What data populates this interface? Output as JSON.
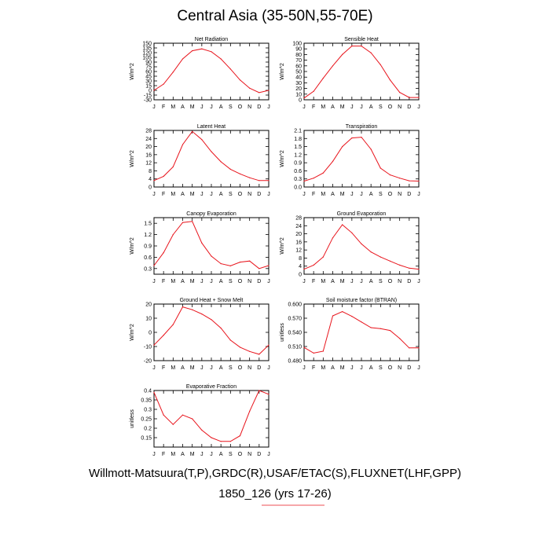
{
  "title": "Central Asia (35-50N,55-70E)",
  "footer": {
    "line1": "Willmott-Matsuura(T,P),GRDC(R),USAF/ETAC(S),FLUXNET(LHF,GPP)",
    "line2": "1850_126 (yrs 17-26)"
  },
  "colors": {
    "series": "#e8141c",
    "axis": "#000000",
    "underline": "#e8141c"
  },
  "chart_data": [
    {
      "type": "line",
      "title": "Net Radiation",
      "ylabel": "W/m^2",
      "categories": [
        "J",
        "F",
        "M",
        "A",
        "M",
        "J",
        "J",
        "A",
        "S",
        "O",
        "N",
        "D",
        "J"
      ],
      "ylim": [
        -30,
        150
      ],
      "yticks": [
        -30,
        -15,
        0,
        15,
        30,
        45,
        60,
        75,
        90,
        105,
        120,
        135,
        150
      ],
      "values": [
        0,
        20,
        58,
        100,
        126,
        132,
        123,
        100,
        68,
        33,
        7,
        -7,
        0
      ]
    },
    {
      "type": "line",
      "title": "Sensible Heat",
      "ylabel": "W/m^2",
      "categories": [
        "J",
        "F",
        "M",
        "A",
        "M",
        "J",
        "J",
        "A",
        "S",
        "O",
        "N",
        "D",
        "J"
      ],
      "ylim": [
        0,
        100
      ],
      "yticks": [
        0,
        10,
        20,
        30,
        40,
        50,
        60,
        70,
        80,
        90,
        100
      ],
      "values": [
        3,
        15,
        38,
        60,
        80,
        95,
        95,
        83,
        62,
        35,
        13,
        4,
        4
      ]
    },
    {
      "type": "line",
      "title": "Latent Heat",
      "ylabel": "W/m^2",
      "categories": [
        "J",
        "F",
        "M",
        "A",
        "M",
        "J",
        "J",
        "A",
        "S",
        "O",
        "N",
        "D",
        "J"
      ],
      "ylim": [
        0,
        28
      ],
      "yticks": [
        0,
        4,
        8,
        12,
        16,
        20,
        24,
        28
      ],
      "values": [
        3.2,
        5.3,
        10,
        21,
        27.5,
        23.5,
        17.5,
        12.5,
        8.8,
        6.5,
        4.6,
        3.2,
        3.2
      ]
    },
    {
      "type": "line",
      "title": "Transpiration",
      "ylabel": "W/m^2",
      "categories": [
        "J",
        "F",
        "M",
        "A",
        "M",
        "J",
        "J",
        "A",
        "S",
        "O",
        "N",
        "D",
        "J"
      ],
      "ylim": [
        0,
        2.1
      ],
      "yticks": [
        0,
        0.3,
        0.6,
        0.9,
        1.2,
        1.5,
        1.8,
        2.1
      ],
      "yticklabels": [
        "0.0",
        "0.3",
        "0.6",
        "0.9",
        "1.2",
        "1.5",
        "1.8",
        "2.1"
      ],
      "values": [
        0.22,
        0.33,
        0.52,
        0.95,
        1.5,
        1.82,
        1.85,
        1.4,
        0.7,
        0.45,
        0.33,
        0.23,
        0.22
      ]
    },
    {
      "type": "line",
      "title": "Canopy Evaporation",
      "ylabel": "W/m^2",
      "categories": [
        "J",
        "F",
        "M",
        "A",
        "M",
        "J",
        "J",
        "A",
        "S",
        "O",
        "N",
        "D",
        "J"
      ],
      "ylim": [
        0.15,
        1.65
      ],
      "yticks": [
        0.3,
        0.6,
        0.9,
        1.2,
        1.5
      ],
      "values": [
        0.38,
        0.72,
        1.2,
        1.52,
        1.55,
        0.98,
        0.63,
        0.43,
        0.37,
        0.47,
        0.5,
        0.3,
        0.38
      ]
    },
    {
      "type": "line",
      "title": "Ground Evaporation",
      "ylabel": "W/m^2",
      "categories": [
        "J",
        "F",
        "M",
        "A",
        "M",
        "J",
        "J",
        "A",
        "S",
        "O",
        "N",
        "D",
        "J"
      ],
      "ylim": [
        0,
        28
      ],
      "yticks": [
        0,
        4,
        8,
        12,
        16,
        20,
        24,
        28
      ],
      "values": [
        2.5,
        4.5,
        8.5,
        18,
        24.5,
        20.5,
        15,
        11,
        8.5,
        6.5,
        4.5,
        3,
        2.5
      ]
    },
    {
      "type": "line",
      "title": "Ground Heat + Snow Melt",
      "ylabel": "W/m^2",
      "categories": [
        "J",
        "F",
        "M",
        "A",
        "M",
        "J",
        "J",
        "A",
        "S",
        "O",
        "N",
        "D",
        "J"
      ],
      "ylim": [
        -20,
        20
      ],
      "yticks": [
        -20,
        -10,
        0,
        10,
        20
      ],
      "values": [
        -9,
        -2,
        5.5,
        18,
        16,
        13,
        9,
        3,
        -5.5,
        -10.5,
        -13.5,
        -15.5,
        -9
      ]
    },
    {
      "type": "line",
      "title": "Soil moisture factor (BTRAN)",
      "ylabel": "unitless",
      "categories": [
        "J",
        "F",
        "M",
        "A",
        "M",
        "J",
        "J",
        "A",
        "S",
        "O",
        "N",
        "D",
        "J"
      ],
      "ylim": [
        0.48,
        0.6
      ],
      "yticks": [
        0.48,
        0.51,
        0.54,
        0.57,
        0.6
      ],
      "yticklabels": [
        "0.480",
        "0.510",
        "0.540",
        "0.570",
        "0.600"
      ],
      "values": [
        0.508,
        0.496,
        0.5,
        0.575,
        0.584,
        0.574,
        0.562,
        0.55,
        0.548,
        0.544,
        0.527,
        0.507,
        0.507
      ]
    },
    {
      "type": "line",
      "title": "Evaporative Fraction",
      "ylabel": "unitless",
      "categories": [
        "J",
        "F",
        "M",
        "A",
        "M",
        "J",
        "J",
        "A",
        "S",
        "O",
        "N",
        "D",
        "J"
      ],
      "ylim": [
        0.1,
        0.4
      ],
      "yticks": [
        0.15,
        0.2,
        0.25,
        0.3,
        0.35,
        0.4
      ],
      "values": [
        0.39,
        0.27,
        0.22,
        0.27,
        0.25,
        0.19,
        0.15,
        0.13,
        0.13,
        0.16,
        0.29,
        0.4,
        0.38
      ]
    }
  ]
}
